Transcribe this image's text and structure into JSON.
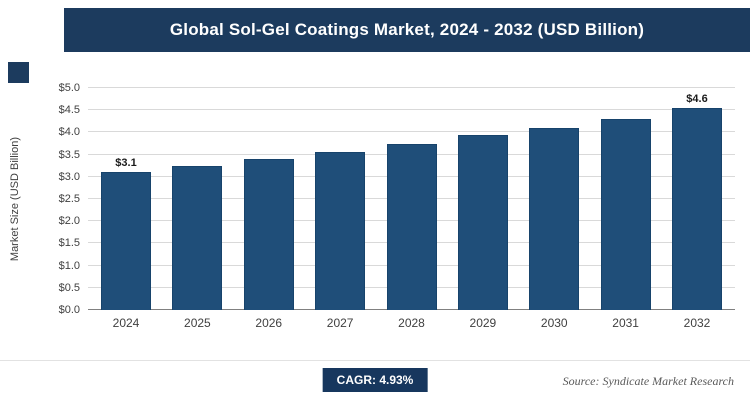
{
  "header": {
    "title": "Global Sol-Gel Coatings Market, 2024 - 2032 (USD Billion)"
  },
  "chart_data": {
    "type": "bar",
    "title": "Global Sol-Gel Coatings Market, 2024 - 2032 (USD Billion)",
    "categories": [
      "2024",
      "2025",
      "2026",
      "2027",
      "2028",
      "2029",
      "2030",
      "2031",
      "2032"
    ],
    "values": [
      3.1,
      3.25,
      3.4,
      3.55,
      3.75,
      3.95,
      4.1,
      4.3,
      4.55
    ],
    "data_labels": {
      "0": "$3.1",
      "8": "$4.6"
    },
    "xlabel": "",
    "ylabel": "Market Size (USD Billion)",
    "ylim": [
      0,
      5
    ],
    "ytick_step": 0.5,
    "ytick_labels": [
      "$0.0",
      "$0.5",
      "$1.0",
      "$1.5",
      "$2.0",
      "$2.5",
      "$3.0",
      "$3.5",
      "$4.0",
      "$4.5",
      "$5.0"
    ],
    "grid": true,
    "legend": "none",
    "bar_color": "#1F4E79"
  },
  "footer": {
    "cagr_label": "CAGR: 4.93%",
    "source": "Source: Syndicate Market Research"
  },
  "colors": {
    "header_bg": "#1C3B5E",
    "bar": "#1F4E79",
    "bar_border": "#17436B",
    "badge_bg": "#17375E",
    "grid": "#D9D9D9",
    "axis_line": "#808080",
    "axis_text": "#404040",
    "source_text": "#595959"
  }
}
